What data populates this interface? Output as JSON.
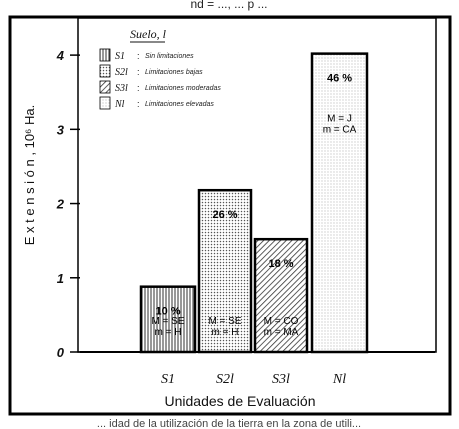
{
  "chart_data": {
    "type": "bar",
    "categories": [
      "S1",
      "S2l",
      "S3l",
      "Nl"
    ],
    "values": [
      0.88,
      2.18,
      1.52,
      4.02
    ],
    "percent_labels": [
      "10 %",
      "26 %",
      "18 %",
      "46 %"
    ],
    "annotations": [
      [
        "M = SE",
        "m = H"
      ],
      [
        "M = SE",
        "m = H"
      ],
      [
        "M = CO",
        "m = MA"
      ],
      [
        "M = J",
        "m = CA"
      ]
    ],
    "ylabel": "E x t e n s i ó n ,  10⁶  Ha.",
    "xlabel": "Unidades de Evaluación",
    "ylim": [
      0,
      4.5
    ],
    "yticks": [
      "0",
      "1",
      "2",
      "3",
      "4"
    ],
    "grid": false,
    "legend_position": "top-left",
    "legend": {
      "title": "Suelo, l",
      "entries": [
        {
          "code": "S1",
          "label": "Sin limitaciones",
          "pattern": "vertical-lines"
        },
        {
          "code": "S2l",
          "label": "Limitaciones bajas",
          "pattern": "dots"
        },
        {
          "code": "S3l",
          "label": "Limitaciones moderadas",
          "pattern": "diagonal-lines"
        },
        {
          "code": "Nl",
          "label": "Limitaciones elevadas",
          "pattern": "fine-dots"
        }
      ]
    }
  },
  "header_fragment": "nd = ..., ... p ...",
  "footer_fragment": "... idad de la utilización de la tierra en la zona de utili..."
}
